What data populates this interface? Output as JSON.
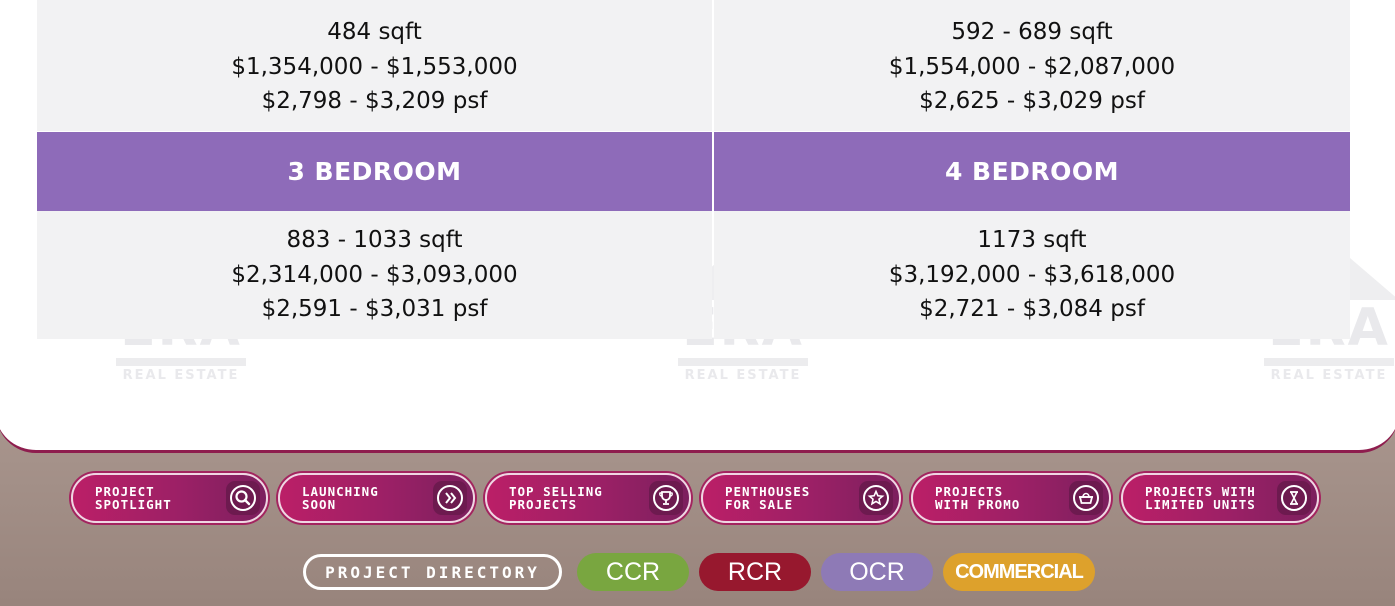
{
  "table": {
    "top_left": {
      "size": "484 sqft",
      "price": "$1,354,000 - $1,553,000",
      "psf": "$2,798 - $3,209 psf"
    },
    "top_right": {
      "size": "592 - 689 sqft",
      "price": "$1,554,000 - $2,087,000",
      "psf": "$2,625 - $3,029 psf"
    },
    "header_left": "3 BEDROOM",
    "header_right": "4 BEDROOM",
    "bottom_left": {
      "size": "883 - 1033 sqft",
      "price": "$2,314,000 - $3,093,000",
      "psf": "$2,591 - $3,031 psf"
    },
    "bottom_right": {
      "size": "1173 sqft",
      "price": "$3,192,000 - $3,618,000",
      "psf": "$2,721 - $3,084 psf"
    }
  },
  "watermark": {
    "brand": "ERA",
    "sub": "REAL ESTATE"
  },
  "nav_buttons": [
    {
      "label": "PROJECT\nSPOTLIGHT",
      "icon": "search-icon"
    },
    {
      "label": "LAUNCHING\nSOON",
      "icon": "double-chevron-right-icon"
    },
    {
      "label": "TOP SELLING\nPROJECTS",
      "icon": "trophy-icon"
    },
    {
      "label": "PENTHOUSES\nFOR SALE",
      "icon": "star-icon"
    },
    {
      "label": "PROJECTS\nWITH PROMO",
      "icon": "basket-icon"
    },
    {
      "label": "PROJECTS WITH\nLIMITED UNITS",
      "icon": "hourglass-icon"
    }
  ],
  "directory": {
    "label": "PROJECT DIRECTORY",
    "regions": [
      "CCR",
      "RCR",
      "OCR",
      "COMMERCIAL"
    ]
  },
  "colors": {
    "header_purple": "#8e6bb9",
    "pill_magenta": "#9c2066",
    "ccr": "#79a640",
    "rcr": "#97182e",
    "ocr": "#8e7ab6",
    "commercial": "#dda12c"
  }
}
